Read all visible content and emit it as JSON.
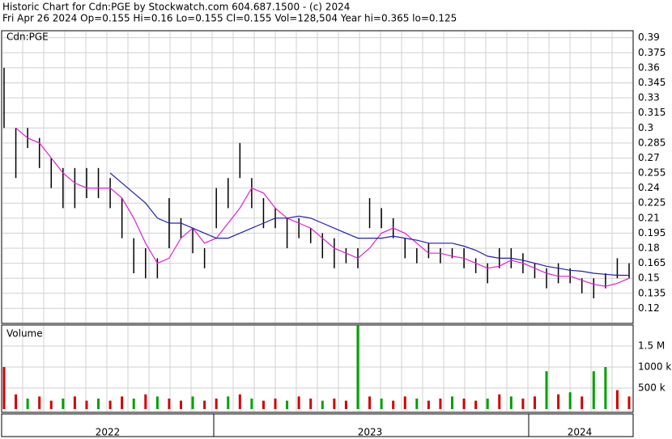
{
  "header": {
    "line1": "Historic Chart for Cdn:PGE by Stockwatch.com 604.687.1500 - (c) 2024",
    "line2": "Fri Apr 26 2024  Op=0.155  Hi=0.16  Lo=0.155  Cl=0.155  Vol=128,504  Year hi=0.365  lo=0.125"
  },
  "chart_data": [
    {
      "type": "ohlc",
      "label": "Cdn:PGE",
      "color": "#000000",
      "high": [
        0.36,
        0.3,
        0.3,
        0.29,
        0.27,
        0.26,
        0.26,
        0.26,
        0.26,
        0.25,
        0.23,
        0.19,
        0.18,
        0.17,
        0.23,
        0.21,
        0.2,
        0.18,
        0.24,
        0.25,
        0.285,
        0.25,
        0.23,
        0.22,
        0.21,
        0.21,
        0.2,
        0.195,
        0.19,
        0.18,
        0.18,
        0.23,
        0.22,
        0.21,
        0.19,
        0.18,
        0.185,
        0.18,
        0.18,
        0.18,
        0.17,
        0.165,
        0.18,
        0.18,
        0.175,
        0.165,
        0.16,
        0.165,
        0.16,
        0.15,
        0.15,
        0.155,
        0.17,
        0.165
      ],
      "low": [
        0.3,
        0.25,
        0.28,
        0.26,
        0.24,
        0.22,
        0.22,
        0.23,
        0.23,
        0.22,
        0.19,
        0.155,
        0.15,
        0.15,
        0.18,
        0.19,
        0.175,
        0.16,
        0.2,
        0.22,
        0.25,
        0.22,
        0.2,
        0.2,
        0.18,
        0.19,
        0.185,
        0.17,
        0.16,
        0.165,
        0.16,
        0.2,
        0.2,
        0.19,
        0.17,
        0.165,
        0.17,
        0.165,
        0.17,
        0.16,
        0.155,
        0.145,
        0.16,
        0.16,
        0.155,
        0.15,
        0.14,
        0.145,
        0.145,
        0.135,
        0.13,
        0.14,
        0.15,
        0.15
      ],
      "series": [
        {
          "color": "#e020d0",
          "values": [
            null,
            0.3,
            0.29,
            0.285,
            0.27,
            0.255,
            0.245,
            0.24,
            0.24,
            0.24,
            0.23,
            0.21,
            0.185,
            0.165,
            0.17,
            0.19,
            0.2,
            0.185,
            0.19,
            0.205,
            0.22,
            0.24,
            0.235,
            0.22,
            0.21,
            0.205,
            0.2,
            0.19,
            0.18,
            0.175,
            0.17,
            0.18,
            0.195,
            0.2,
            0.195,
            0.185,
            0.175,
            0.175,
            0.172,
            0.17,
            0.165,
            0.16,
            0.162,
            0.168,
            0.165,
            0.16,
            0.155,
            0.152,
            0.152,
            0.148,
            0.144,
            0.142,
            0.145,
            0.15
          ]
        },
        {
          "color": "#2020b0",
          "values": [
            null,
            null,
            null,
            null,
            null,
            null,
            null,
            null,
            null,
            0.255,
            0.245,
            0.235,
            0.225,
            0.21,
            0.205,
            0.205,
            0.2,
            0.195,
            0.19,
            0.19,
            0.195,
            0.2,
            0.205,
            0.21,
            0.21,
            0.212,
            0.21,
            0.205,
            0.2,
            0.195,
            0.19,
            0.19,
            0.19,
            0.192,
            0.19,
            0.188,
            0.185,
            0.185,
            0.185,
            0.182,
            0.178,
            0.172,
            0.17,
            0.17,
            0.168,
            0.165,
            0.162,
            0.16,
            0.158,
            0.157,
            0.155,
            0.154,
            0.153,
            0.153
          ]
        }
      ],
      "ylim": [
        0.105,
        0.397
      ],
      "yticks": [
        0.39,
        0.375,
        0.36,
        0.345,
        0.33,
        0.315,
        0.3,
        0.285,
        0.27,
        0.255,
        0.24,
        0.225,
        0.21,
        0.195,
        0.18,
        0.165,
        0.15,
        0.135,
        0.12
      ],
      "grid": true
    },
    {
      "type": "bar",
      "label": "Volume",
      "values": [
        1000000,
        350000,
        250000,
        300000,
        200000,
        250000,
        300000,
        200000,
        250000,
        200000,
        300000,
        250000,
        350000,
        300000,
        250000,
        200000,
        300000,
        200000,
        250000,
        300000,
        350000,
        250000,
        200000,
        250000,
        200000,
        300000,
        250000,
        200000,
        250000,
        200000,
        2000000,
        300000,
        250000,
        200000,
        300000,
        250000,
        200000,
        250000,
        300000,
        250000,
        200000,
        250000,
        350000,
        300000,
        250000,
        300000,
        900000,
        350000,
        400000,
        300000,
        900000,
        1000000,
        450000,
        300000
      ],
      "colors": [
        "#d00000",
        "#d00000",
        "#00a000",
        "#d00000",
        "#d00000",
        "#00a000",
        "#d00000",
        "#d00000",
        "#00a000",
        "#d00000",
        "#d00000",
        "#00a000",
        "#d00000",
        "#00a000",
        "#d00000",
        "#d00000",
        "#00a000",
        "#d00000",
        "#d00000",
        "#00a000",
        "#d00000",
        "#00a000",
        "#d00000",
        "#d00000",
        "#00a000",
        "#d00000",
        "#d00000",
        "#00a000",
        "#d00000",
        "#d00000",
        "#00a000",
        "#d00000",
        "#00a000",
        "#d00000",
        "#d00000",
        "#00a000",
        "#d00000",
        "#d00000",
        "#00a000",
        "#d00000",
        "#d00000",
        "#00a000",
        "#d00000",
        "#00a000",
        "#d00000",
        "#d00000",
        "#00a000",
        "#d00000",
        "#00a000",
        "#d00000",
        "#00a000",
        "#00a000",
        "#d00000",
        "#d00000"
      ],
      "ylim": [
        0,
        2000000
      ],
      "yticks": [
        {
          "value": 1500000,
          "label": "1.5 M"
        },
        {
          "value": 1000000,
          "label": "1000 k"
        },
        {
          "value": 500000,
          "label": "500 k"
        }
      ]
    },
    {
      "type": "date-axis",
      "labels": [
        "2022",
        "2023",
        "2024"
      ]
    }
  ]
}
